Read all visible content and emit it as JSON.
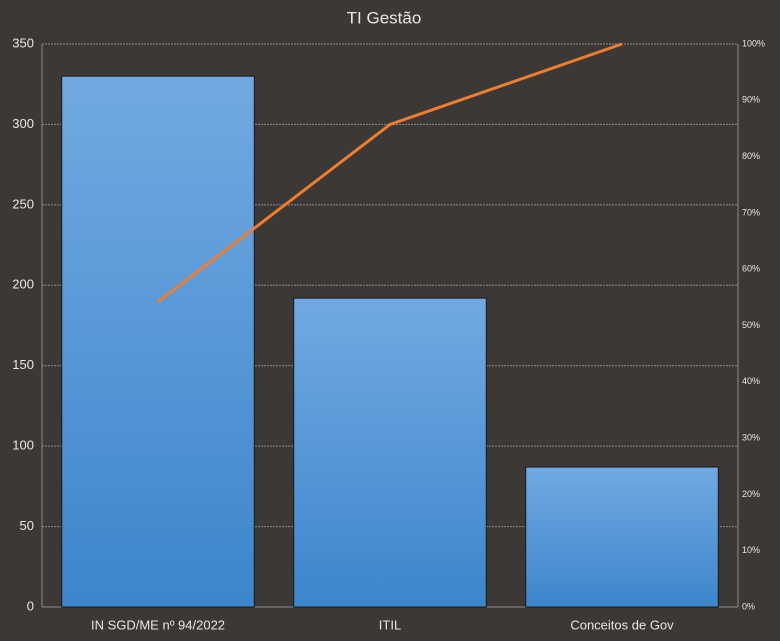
{
  "chart_data": {
    "type": "pareto",
    "title": "TI Gestão",
    "categories": [
      "IN SGD/ME nº 94/2022",
      "ITIL",
      "Conceitos de Gov"
    ],
    "series": [
      {
        "type": "bar",
        "color": "#5b9bd5",
        "values": [
          330,
          192,
          87
        ]
      },
      {
        "type": "line",
        "axis": "y2",
        "color": "#ed7d31",
        "values": [
          54.2,
          85.7,
          100
        ]
      }
    ],
    "ylim": [
      0,
      350
    ],
    "yticks": [
      0,
      50,
      100,
      150,
      200,
      250,
      300,
      350
    ],
    "y2lim": [
      0,
      100
    ],
    "y2ticks": [
      {
        "value": 0,
        "label": "0%"
      },
      {
        "value": 10,
        "label": "10%"
      },
      {
        "value": 20,
        "label": "20%"
      },
      {
        "value": 30,
        "label": "30%"
      },
      {
        "value": 40,
        "label": "40%"
      },
      {
        "value": 50,
        "label": "50%"
      },
      {
        "value": 60,
        "label": "60%"
      },
      {
        "value": 70,
        "label": "70%"
      },
      {
        "value": 80,
        "label": "80%"
      },
      {
        "value": 90,
        "label": "90%"
      },
      {
        "value": 100,
        "label": "100%"
      }
    ],
    "grid": true
  }
}
